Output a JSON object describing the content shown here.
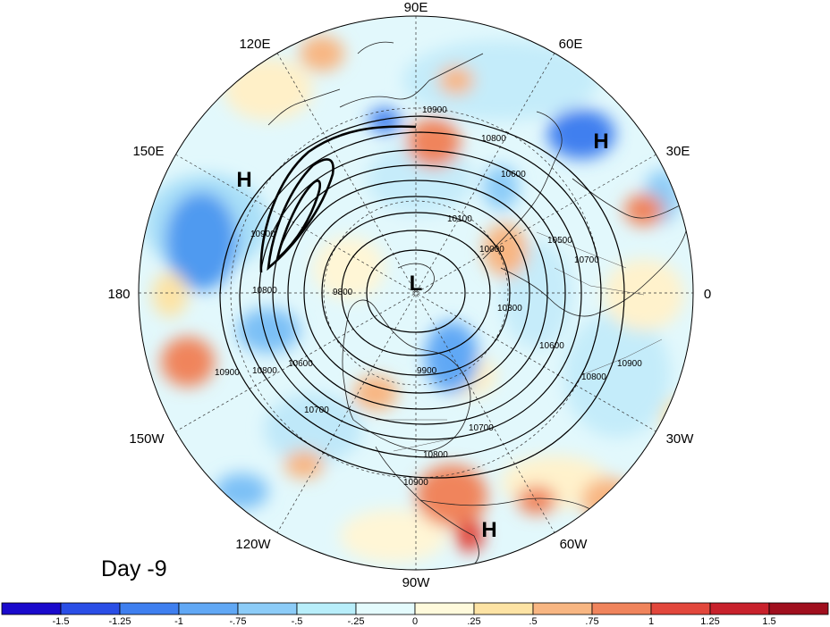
{
  "map": {
    "day_label": "Day -9",
    "longitude_labels": [
      "90E",
      "60E",
      "30E",
      "0",
      "30W",
      "60W",
      "90W",
      "120W",
      "150W",
      "180",
      "150E",
      "120E"
    ],
    "pressure_markers": [
      {
        "text": "H",
        "region": "ural-siberia"
      },
      {
        "text": "H",
        "region": "north-pacific"
      },
      {
        "text": "L",
        "region": "polar"
      },
      {
        "text": "H",
        "region": "central-america"
      }
    ],
    "contour_labels": [
      "10900",
      "10800",
      "10600",
      "10100",
      "10500",
      "10700",
      "10000",
      "10300",
      "9900",
      "10600",
      "10800",
      "10900",
      "10900",
      "10800",
      "10600",
      "10700",
      "10800",
      "10900",
      "9800",
      "10900",
      "10800",
      "10700"
    ]
  },
  "colorbar": {
    "tick_labels": [
      "-1.5",
      "-1.25",
      "-1",
      "-.75",
      "-.5",
      "-.25",
      "0",
      ".25",
      ".5",
      ".75",
      "1",
      "1.25",
      "1.5"
    ],
    "colors": [
      "#1a0acc",
      "#2a4ee6",
      "#3f7fef",
      "#61a8f5",
      "#8cccf8",
      "#b8eefa",
      "#e4fbfd",
      "#fffadc",
      "#fde3a4",
      "#f8b682",
      "#f0845c",
      "#e2473c",
      "#c8212c",
      "#a00f1e"
    ]
  }
}
